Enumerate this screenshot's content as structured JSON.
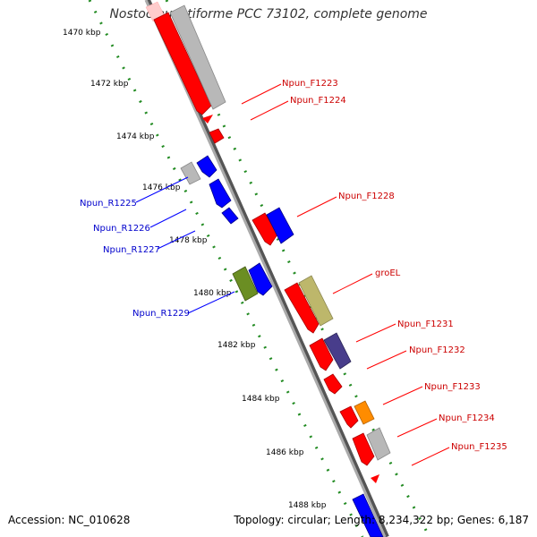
{
  "title": "Nostoc punctiforme PCC 73102, complete genome",
  "footer": {
    "accession": "Accession: NC_010628",
    "topology": "Topology: circular; Length: 8,234,322 bp; Genes: 6,187"
  },
  "ticks": [
    "1470 kbp",
    "1472 kbp",
    "1474 kbp",
    "1476 kbp",
    "1478 kbp",
    "1480 kbp",
    "1482 kbp",
    "1484 kbp",
    "1486 kbp",
    "1488 kbp"
  ],
  "colors": {
    "forward": "#ff0000",
    "reverse": "#0000ff",
    "grey": "#b8b8b8",
    "olive": "#6b8e23",
    "khaki": "#bdb76b",
    "purple": "#483d8b",
    "orange": "#ff8c00",
    "backbone": "#888888",
    "dots": "#228b22"
  },
  "labels": {
    "right": [
      "Npun_F1223",
      "Npun_F1224",
      "Npun_F1228",
      "groEL",
      "Npun_F1231",
      "Npun_F1232",
      "Npun_F1233",
      "Npun_F1234",
      "Npun_F1235"
    ],
    "left": [
      "Npun_R1225",
      "Npun_R1226",
      "Npun_R1227",
      "Npun_R1229"
    ]
  }
}
